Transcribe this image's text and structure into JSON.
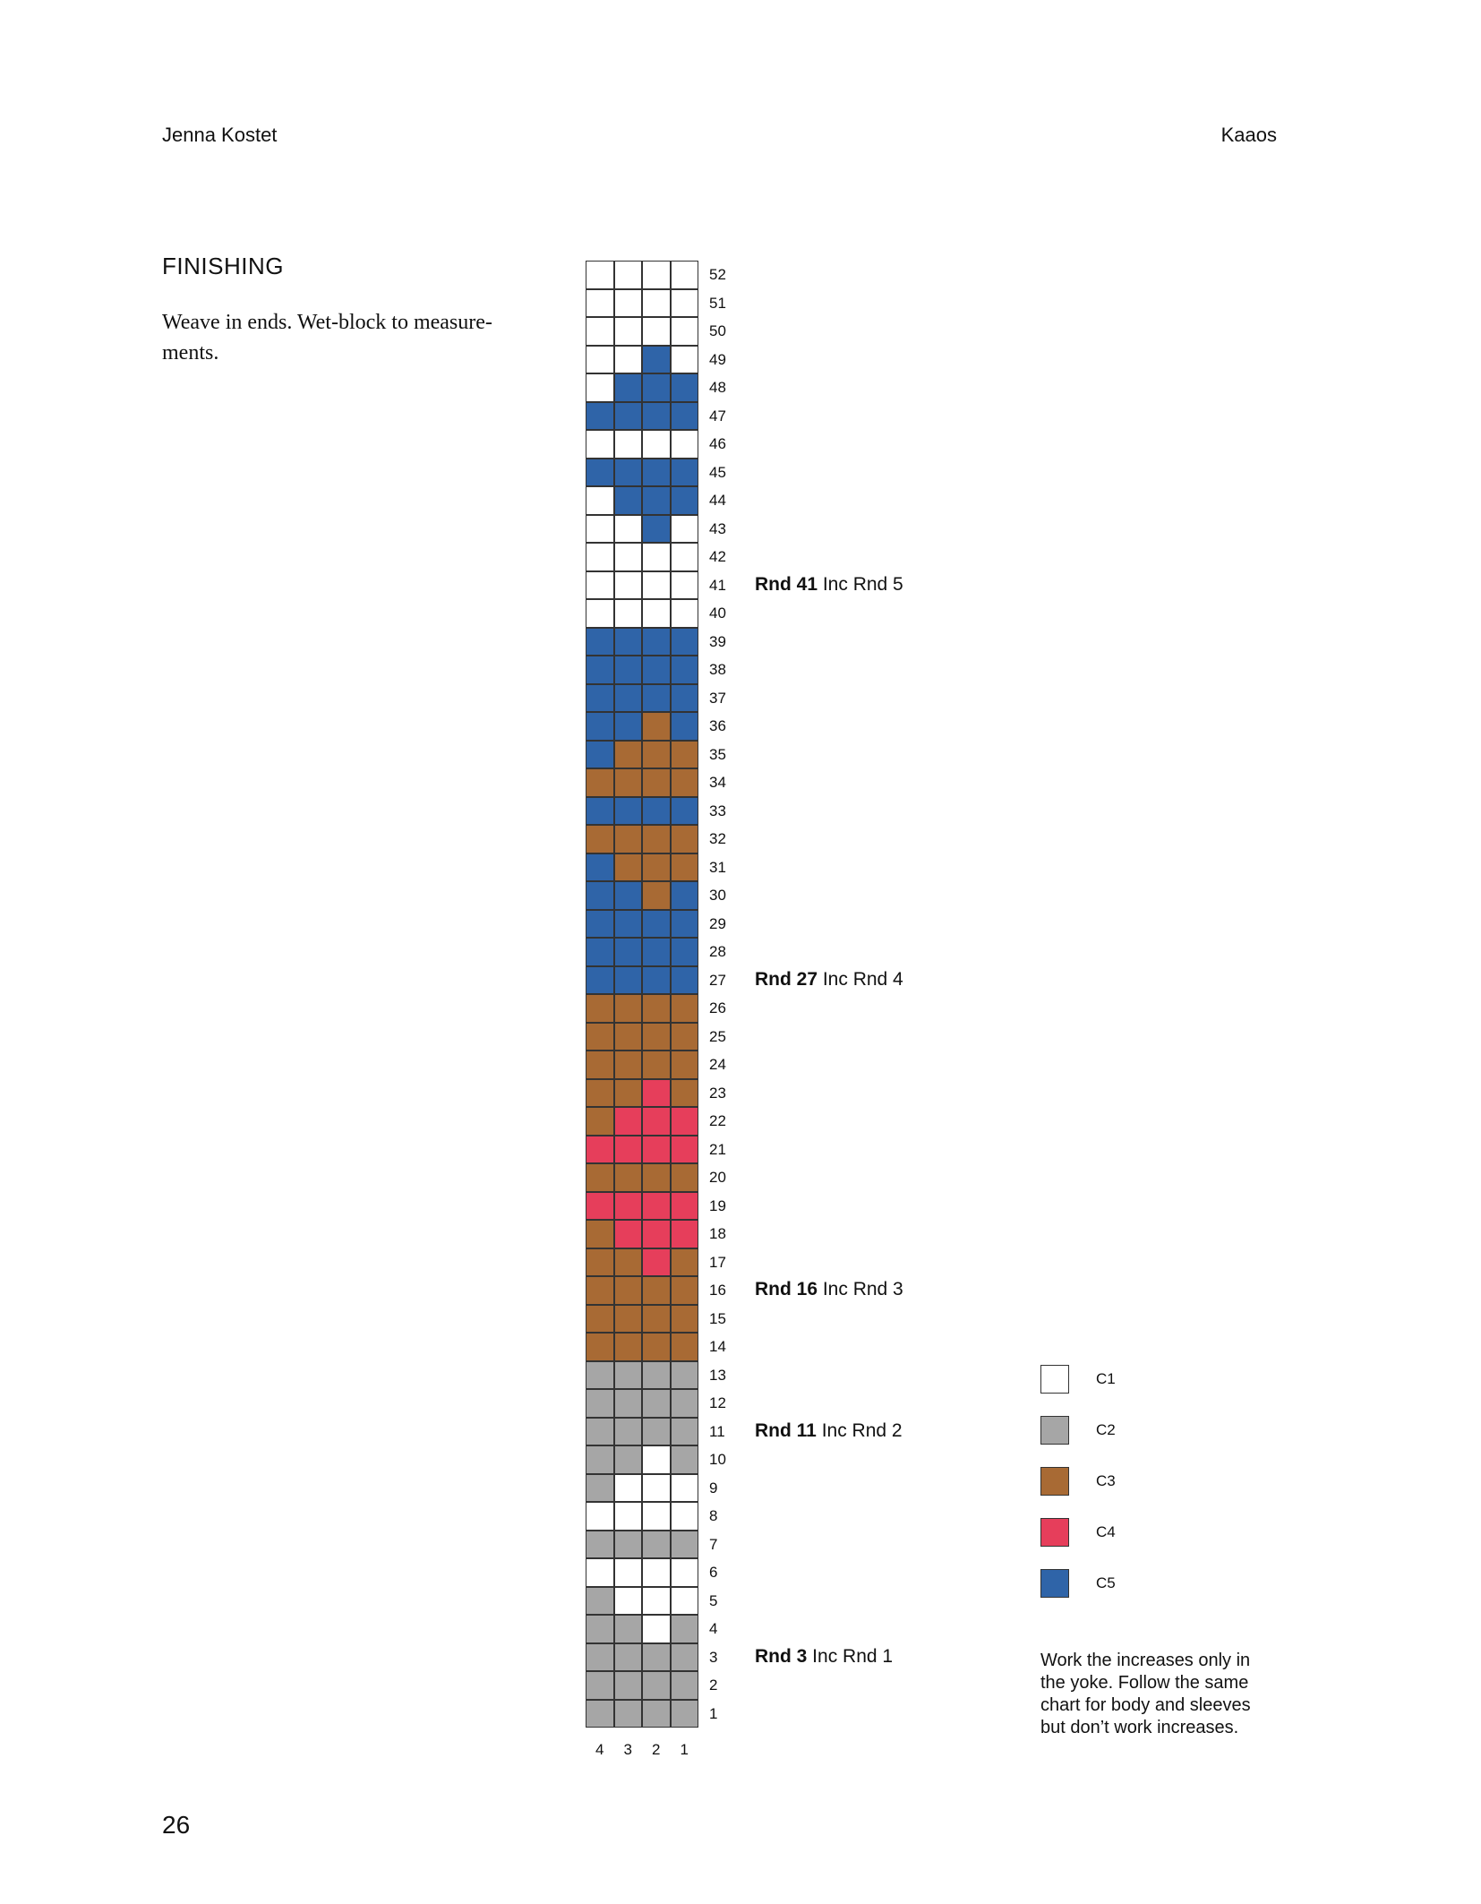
{
  "header": {
    "author": "Jenna Kostet",
    "pattern": "Kaaos"
  },
  "section": {
    "title": "FINISHING",
    "text": "Weave in ends. Wet-block to measure-ments."
  },
  "page_number": "26",
  "colors": {
    "C1": "#ffffff",
    "C2": "#a6a6a6",
    "C3": "#a86a34",
    "C4": "#e63e5b",
    "C5": "#2f64a8"
  },
  "chart": {
    "columns": [
      "4",
      "3",
      "2",
      "1"
    ],
    "rows": [
      {
        "n": "52",
        "c": [
          "C1",
          "C1",
          "C1",
          "C1"
        ]
      },
      {
        "n": "51",
        "c": [
          "C1",
          "C1",
          "C1",
          "C1"
        ]
      },
      {
        "n": "50",
        "c": [
          "C1",
          "C1",
          "C1",
          "C1"
        ]
      },
      {
        "n": "49",
        "c": [
          "C1",
          "C1",
          "C5",
          "C1"
        ]
      },
      {
        "n": "48",
        "c": [
          "C1",
          "C5",
          "C5",
          "C5"
        ]
      },
      {
        "n": "47",
        "c": [
          "C5",
          "C5",
          "C5",
          "C5"
        ]
      },
      {
        "n": "46",
        "c": [
          "C1",
          "C1",
          "C1",
          "C1"
        ]
      },
      {
        "n": "45",
        "c": [
          "C5",
          "C5",
          "C5",
          "C5"
        ]
      },
      {
        "n": "44",
        "c": [
          "C1",
          "C5",
          "C5",
          "C5"
        ]
      },
      {
        "n": "43",
        "c": [
          "C1",
          "C1",
          "C5",
          "C1"
        ]
      },
      {
        "n": "42",
        "c": [
          "C1",
          "C1",
          "C1",
          "C1"
        ]
      },
      {
        "n": "41",
        "c": [
          "C1",
          "C1",
          "C1",
          "C1"
        ]
      },
      {
        "n": "40",
        "c": [
          "C1",
          "C1",
          "C1",
          "C1"
        ]
      },
      {
        "n": "39",
        "c": [
          "C5",
          "C5",
          "C5",
          "C5"
        ]
      },
      {
        "n": "38",
        "c": [
          "C5",
          "C5",
          "C5",
          "C5"
        ]
      },
      {
        "n": "37",
        "c": [
          "C5",
          "C5",
          "C5",
          "C5"
        ]
      },
      {
        "n": "36",
        "c": [
          "C5",
          "C5",
          "C3",
          "C5"
        ]
      },
      {
        "n": "35",
        "c": [
          "C5",
          "C3",
          "C3",
          "C3"
        ]
      },
      {
        "n": "34",
        "c": [
          "C3",
          "C3",
          "C3",
          "C3"
        ]
      },
      {
        "n": "33",
        "c": [
          "C5",
          "C5",
          "C5",
          "C5"
        ]
      },
      {
        "n": "32",
        "c": [
          "C3",
          "C3",
          "C3",
          "C3"
        ]
      },
      {
        "n": "31",
        "c": [
          "C5",
          "C3",
          "C3",
          "C3"
        ]
      },
      {
        "n": "30",
        "c": [
          "C5",
          "C5",
          "C3",
          "C5"
        ]
      },
      {
        "n": "29",
        "c": [
          "C5",
          "C5",
          "C5",
          "C5"
        ]
      },
      {
        "n": "28",
        "c": [
          "C5",
          "C5",
          "C5",
          "C5"
        ]
      },
      {
        "n": "27",
        "c": [
          "C5",
          "C5",
          "C5",
          "C5"
        ]
      },
      {
        "n": "26",
        "c": [
          "C3",
          "C3",
          "C3",
          "C3"
        ]
      },
      {
        "n": "25",
        "c": [
          "C3",
          "C3",
          "C3",
          "C3"
        ]
      },
      {
        "n": "24",
        "c": [
          "C3",
          "C3",
          "C3",
          "C3"
        ]
      },
      {
        "n": "23",
        "c": [
          "C3",
          "C3",
          "C4",
          "C3"
        ]
      },
      {
        "n": "22",
        "c": [
          "C3",
          "C4",
          "C4",
          "C4"
        ]
      },
      {
        "n": "21",
        "c": [
          "C4",
          "C4",
          "C4",
          "C4"
        ]
      },
      {
        "n": "20",
        "c": [
          "C3",
          "C3",
          "C3",
          "C3"
        ]
      },
      {
        "n": "19",
        "c": [
          "C4",
          "C4",
          "C4",
          "C4"
        ]
      },
      {
        "n": "18",
        "c": [
          "C3",
          "C4",
          "C4",
          "C4"
        ]
      },
      {
        "n": "17",
        "c": [
          "C3",
          "C3",
          "C4",
          "C3"
        ]
      },
      {
        "n": "16",
        "c": [
          "C3",
          "C3",
          "C3",
          "C3"
        ]
      },
      {
        "n": "15",
        "c": [
          "C3",
          "C3",
          "C3",
          "C3"
        ]
      },
      {
        "n": "14",
        "c": [
          "C3",
          "C3",
          "C3",
          "C3"
        ]
      },
      {
        "n": "13",
        "c": [
          "C2",
          "C2",
          "C2",
          "C2"
        ]
      },
      {
        "n": "12",
        "c": [
          "C2",
          "C2",
          "C2",
          "C2"
        ]
      },
      {
        "n": "11",
        "c": [
          "C2",
          "C2",
          "C2",
          "C2"
        ]
      },
      {
        "n": "10",
        "c": [
          "C2",
          "C2",
          "C1",
          "C2"
        ]
      },
      {
        "n": "9",
        "c": [
          "C2",
          "C1",
          "C1",
          "C1"
        ]
      },
      {
        "n": "8",
        "c": [
          "C1",
          "C1",
          "C1",
          "C1"
        ]
      },
      {
        "n": "7",
        "c": [
          "C2",
          "C2",
          "C2",
          "C2"
        ]
      },
      {
        "n": "6",
        "c": [
          "C1",
          "C1",
          "C1",
          "C1"
        ]
      },
      {
        "n": "5",
        "c": [
          "C2",
          "C1",
          "C1",
          "C1"
        ]
      },
      {
        "n": "4",
        "c": [
          "C2",
          "C2",
          "C1",
          "C2"
        ]
      },
      {
        "n": "3",
        "c": [
          "C2",
          "C2",
          "C2",
          "C2"
        ]
      },
      {
        "n": "2",
        "c": [
          "C2",
          "C2",
          "C2",
          "C2"
        ]
      },
      {
        "n": "1",
        "c": [
          "C2",
          "C2",
          "C2",
          "C2"
        ]
      }
    ]
  },
  "increase_notes": [
    {
      "row": "41",
      "bold": "Rnd 41",
      "text": "Inc Rnd 5"
    },
    {
      "row": "27",
      "bold": "Rnd 27",
      "text": "Inc Rnd 4"
    },
    {
      "row": "16",
      "bold": "Rnd 16",
      "text": "Inc Rnd 3"
    },
    {
      "row": "11",
      "bold": "Rnd 11",
      "text": "Inc Rnd 2"
    },
    {
      "row": "3",
      "bold": "Rnd 3",
      "text": "Inc Rnd 1"
    }
  ],
  "legend": [
    {
      "key": "C1",
      "label": "C1"
    },
    {
      "key": "C2",
      "label": "C2"
    },
    {
      "key": "C3",
      "label": "C3"
    },
    {
      "key": "C4",
      "label": "C4"
    },
    {
      "key": "C5",
      "label": "C5"
    }
  ],
  "note": "Work the increases only in the yoke. Follow the same chart for body and sleeves but don’t work increases."
}
